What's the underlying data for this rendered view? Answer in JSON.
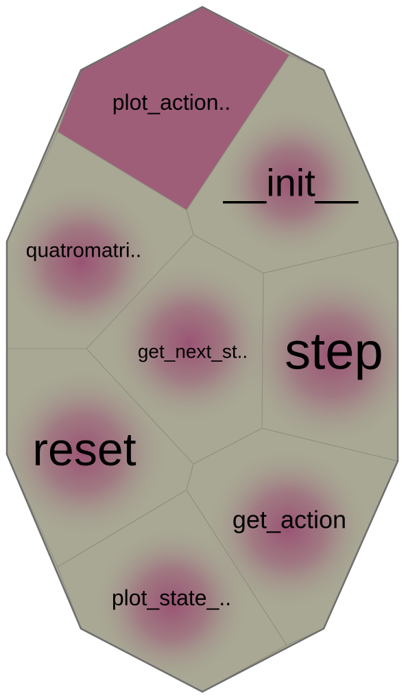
{
  "colors": {
    "base": "#a8a894",
    "highlight": "#9e5e78",
    "center": "#9a5474",
    "cell_border": "#8f8f80",
    "outer_border": "#6e6e6e"
  },
  "cells": [
    {
      "id": "plot_action",
      "label": "plot_action..",
      "highlighted": true
    },
    {
      "id": "init",
      "label": "__init__",
      "highlighted": false
    },
    {
      "id": "quatromatri",
      "label": "quatromatri..",
      "highlighted": false
    },
    {
      "id": "get_next_st",
      "label": "get_next_st..",
      "highlighted": false
    },
    {
      "id": "step",
      "label": "step",
      "highlighted": false
    },
    {
      "id": "reset",
      "label": "reset",
      "highlighted": false
    },
    {
      "id": "get_action",
      "label": "get_action",
      "highlighted": false
    },
    {
      "id": "plot_state",
      "label": "plot_state_..",
      "highlighted": false
    }
  ]
}
